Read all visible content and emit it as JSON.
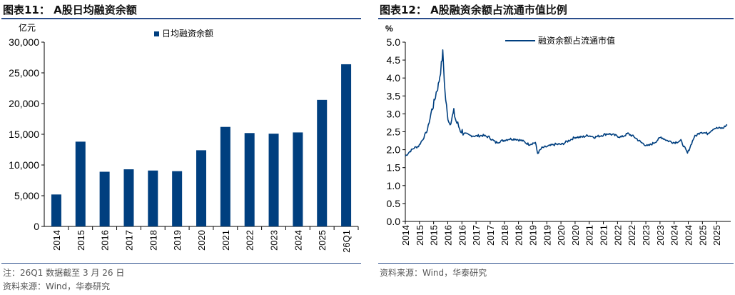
{
  "colors": {
    "accent": "#003f7f",
    "rule": "#2b4e8c"
  },
  "left": {
    "figure_title": "图表11： A股日均融资余额",
    "note_line1": "注：26Q1 数据截至 3 月 26 日",
    "source": "资料来源：Wind，华泰研究"
  },
  "right": {
    "figure_title": "图表12： A股融资余额占流通市值比例",
    "source": "资料来源：Wind，华泰研究"
  },
  "chart_data": [
    {
      "type": "bar",
      "title": "",
      "unit_label": "亿元",
      "categories": [
        "2014",
        "2015",
        "2016",
        "2017",
        "2018",
        "2019",
        "2020",
        "2021",
        "2022",
        "2023",
        "2024",
        "2025",
        "26Q1"
      ],
      "series": [
        {
          "name": "日均融资余额",
          "values": [
            5200,
            13800,
            8900,
            9300,
            9100,
            9000,
            12400,
            16200,
            15200,
            15100,
            15300,
            20600,
            26400
          ]
        }
      ],
      "ylim": [
        0,
        30000
      ],
      "yticks": [
        "0",
        "5,000",
        "10,000",
        "15,000",
        "20,000",
        "25,000",
        "30,000"
      ],
      "legend": "top-center",
      "grid": false
    },
    {
      "type": "line",
      "title": "",
      "unit_label": "%",
      "x_ticks": [
        "2014",
        "2015",
        "2015",
        "2016",
        "2016",
        "2017",
        "2017",
        "2018",
        "2018",
        "2019",
        "2019",
        "2020",
        "2020",
        "2021",
        "2021",
        "2022",
        "2022",
        "2023",
        "2023",
        "2024",
        "2024",
        "2025",
        "2025"
      ],
      "ylim": [
        0,
        5
      ],
      "yticks": [
        "0.0",
        "0.5",
        "1.0",
        "1.5",
        "2.0",
        "2.5",
        "3.0",
        "3.5",
        "4.0",
        "4.5",
        "5.0"
      ],
      "legend": "top-center",
      "grid": false,
      "series": [
        {
          "name": "融资余额占流通市值",
          "points": [
            [
              "2014-01",
              1.82
            ],
            [
              "2014-03",
              1.95
            ],
            [
              "2014-05",
              2.05
            ],
            [
              "2014-07",
              2.1
            ],
            [
              "2014-09",
              2.3
            ],
            [
              "2014-11",
              2.55
            ],
            [
              "2015-01",
              3.1
            ],
            [
              "2015-02",
              3.3
            ],
            [
              "2015-03",
              3.6
            ],
            [
              "2015-04",
              3.8
            ],
            [
              "2015-05",
              4.2
            ],
            [
              "2015-06",
              4.7
            ],
            [
              "2015-07",
              3.6
            ],
            [
              "2015-08",
              3.0
            ],
            [
              "2015-09",
              2.75
            ],
            [
              "2015-10",
              2.85
            ],
            [
              "2015-11",
              3.05
            ],
            [
              "2015-12",
              2.8
            ],
            [
              "2016-02",
              2.55
            ],
            [
              "2016-04",
              2.45
            ],
            [
              "2016-06",
              2.4
            ],
            [
              "2016-09",
              2.38
            ],
            [
              "2016-12",
              2.4
            ],
            [
              "2017-03",
              2.35
            ],
            [
              "2017-06",
              2.2
            ],
            [
              "2017-09",
              2.25
            ],
            [
              "2017-12",
              2.3
            ],
            [
              "2018-03",
              2.3
            ],
            [
              "2018-06",
              2.25
            ],
            [
              "2018-09",
              2.15
            ],
            [
              "2018-12",
              2.2
            ],
            [
              "2019-01",
              1.9
            ],
            [
              "2019-03",
              2.05
            ],
            [
              "2019-06",
              2.1
            ],
            [
              "2019-09",
              2.15
            ],
            [
              "2019-12",
              2.15
            ],
            [
              "2020-03",
              2.25
            ],
            [
              "2020-06",
              2.35
            ],
            [
              "2020-09",
              2.35
            ],
            [
              "2020-12",
              2.4
            ],
            [
              "2021-03",
              2.35
            ],
            [
              "2021-06",
              2.4
            ],
            [
              "2021-09",
              2.45
            ],
            [
              "2021-12",
              2.4
            ],
            [
              "2022-03",
              2.35
            ],
            [
              "2022-06",
              2.45
            ],
            [
              "2022-09",
              2.35
            ],
            [
              "2022-12",
              2.2
            ],
            [
              "2023-03",
              2.1
            ],
            [
              "2023-06",
              2.2
            ],
            [
              "2023-09",
              2.35
            ],
            [
              "2023-12",
              2.25
            ],
            [
              "2024-03",
              2.2
            ],
            [
              "2024-06",
              2.25
            ],
            [
              "2024-09",
              1.9
            ],
            [
              "2024-12",
              2.35
            ],
            [
              "2025-03",
              2.5
            ],
            [
              "2025-06",
              2.45
            ],
            [
              "2025-09",
              2.6
            ],
            [
              "2026-01",
              2.6
            ],
            [
              "2026-03",
              2.7
            ]
          ]
        }
      ]
    }
  ]
}
